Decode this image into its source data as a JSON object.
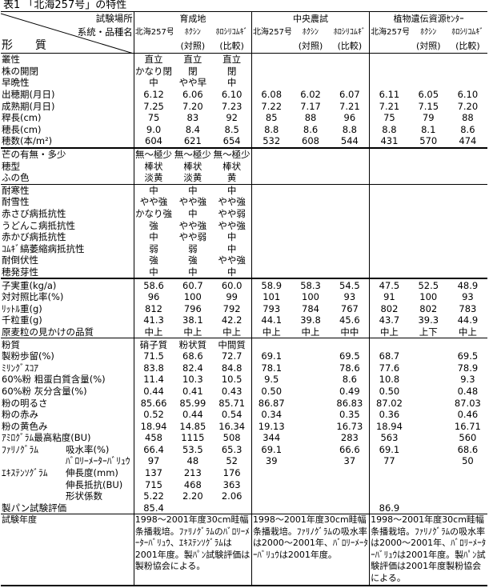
{
  "title": "表1 「北海257号」の特性",
  "header": {
    "site_label": "試験場所",
    "variety_label": "系統・品種名",
    "trait_label": "形　　質",
    "locations": [
      "育成地",
      "中央農試",
      "植物遺伝資源ｾﾝﾀｰ"
    ],
    "varieties": [
      "北海257号",
      "ﾎｸｼﾝ",
      "ﾎﾛｼﾘｺﾑｷﾞ"
    ],
    "roles": [
      "",
      "(対照)",
      "(比較)"
    ]
  },
  "sections": [
    {
      "border": "thin",
      "rows": [
        {
          "label": "叢性",
          "values": [
            "直立",
            "直立",
            "直立",
            "",
            "",
            "",
            "",
            "",
            ""
          ]
        },
        {
          "label": "株の開閉",
          "values": [
            "かなり閉",
            "閉",
            "閉",
            "",
            "",
            "",
            "",
            "",
            ""
          ]
        },
        {
          "label": "早晩性",
          "values": [
            "中",
            "やや早",
            "中",
            "",
            "",
            "",
            "",
            "",
            ""
          ]
        },
        {
          "label": "出穂期(月日)",
          "values": [
            "6.12",
            "6.06",
            "6.10",
            "6.08",
            "6.02",
            "6.07",
            "6.11",
            "6.05",
            "6.10"
          ]
        },
        {
          "label": "成熟期(月日)",
          "values": [
            "7.25",
            "7.20",
            "7.23",
            "7.22",
            "7.17",
            "7.21",
            "7.21",
            "7.15",
            "7.20"
          ]
        },
        {
          "label": "稈長(cm)",
          "values": [
            "75",
            "83",
            "92",
            "85",
            "88",
            "96",
            "75",
            "79",
            "88"
          ]
        },
        {
          "label": "穂長(cm)",
          "values": [
            "9.0",
            "8.4",
            "8.5",
            "8.8",
            "8.6",
            "8.8",
            "8.8",
            "8.1",
            "8.6"
          ]
        },
        {
          "label": "穂数(本/m²)",
          "values": [
            "604",
            "621",
            "654",
            "532",
            "608",
            "544",
            "431",
            "570",
            "474"
          ]
        }
      ]
    },
    {
      "border": "thick",
      "rows": [
        {
          "label": "芒の有無・多少",
          "values": [
            "無～極少",
            "無～極少",
            "無～極少",
            "",
            "",
            "",
            "",
            "",
            ""
          ]
        },
        {
          "label": "穂型",
          "values": [
            "棒状",
            "棒状",
            "棒状",
            "",
            "",
            "",
            "",
            "",
            ""
          ]
        },
        {
          "label": "ふの色",
          "values": [
            "淡黄",
            "淡黄",
            "黄",
            "",
            "",
            "",
            "",
            "",
            ""
          ]
        }
      ]
    },
    {
      "border": "thin",
      "rows": [
        {
          "label": "耐寒性",
          "values": [
            "中",
            "中",
            "中",
            "",
            "",
            "",
            "",
            "",
            ""
          ]
        },
        {
          "label": "耐雪性",
          "values": [
            "やや強",
            "やや強",
            "やや強",
            "",
            "",
            "",
            "",
            "",
            ""
          ]
        },
        {
          "label": "赤さび病抵抗性",
          "values": [
            "かなり強",
            "中",
            "やや弱",
            "",
            "",
            "",
            "",
            "",
            ""
          ]
        },
        {
          "label": "うどんこ病抵抗性",
          "values": [
            "強",
            "やや強",
            "やや強",
            "",
            "",
            "",
            "",
            "",
            ""
          ]
        },
        {
          "label": "赤かび病抵抗性",
          "values": [
            "中",
            "やや弱",
            "中",
            "",
            "",
            "",
            "",
            "",
            ""
          ]
        },
        {
          "label": "ｺﾑｷﾞ縞萎縮病抵抗性",
          "values": [
            "弱",
            "弱",
            "中",
            "",
            "",
            "",
            "",
            "",
            ""
          ]
        },
        {
          "label": "耐倒伏性",
          "values": [
            "強",
            "強",
            "やや強",
            "",
            "",
            "",
            "",
            "",
            ""
          ]
        },
        {
          "label": "穂発芽性",
          "values": [
            "中",
            "中",
            "中",
            "",
            "",
            "",
            "",
            "",
            ""
          ]
        }
      ]
    },
    {
      "border": "thick",
      "rows": [
        {
          "label": "子実重(kg/a)",
          "values": [
            "58.6",
            "60.7",
            "60.0",
            "58.9",
            "58.3",
            "54.5",
            "47.5",
            "52.5",
            "48.9"
          ]
        },
        {
          "label": "対対照比率(%)",
          "values": [
            "96",
            "100",
            "99",
            "101",
            "100",
            "93",
            "91",
            "100",
            "93"
          ]
        },
        {
          "label": "ﾘｯﾄﾙ重(g)",
          "values": [
            "812",
            "796",
            "792",
            "793",
            "784",
            "767",
            "802",
            "802",
            "783"
          ]
        },
        {
          "label": "千粒重(g)",
          "values": [
            "41.3",
            "38.1",
            "42.2",
            "44.1",
            "39.8",
            "45.6",
            "43.7",
            "39.3",
            "44.9"
          ]
        },
        {
          "label": "原麦粒の見かけの品質",
          "values": [
            "中上",
            "中上",
            "中上",
            "中上",
            "中上",
            "中中",
            "中上",
            "上下",
            "中上"
          ]
        }
      ]
    },
    {
      "border": "thin",
      "rows": [
        {
          "label": "粉質",
          "values": [
            "硝子質",
            "粉状質",
            "中間質",
            "",
            "",
            "",
            "",
            "",
            ""
          ]
        },
        {
          "label": "製粉歩留(%)",
          "values": [
            "71.5",
            "68.6",
            "72.7",
            "69.1",
            "",
            "69.5",
            "68.7",
            "",
            "69.5"
          ]
        },
        {
          "label": "ﾐﾘﾝｸﾞｽｺｱ",
          "values": [
            "83.8",
            "82.4",
            "84.8",
            "78.1",
            "",
            "78.6",
            "77.6",
            "",
            "78.9"
          ]
        },
        {
          "label": "60%粉 粗蛋白質含量(%)",
          "values": [
            "11.4",
            "10.3",
            "10.5",
            "9.5",
            "",
            "8.6",
            "10.8",
            "",
            "9.3"
          ]
        },
        {
          "label": "60%粉 灰分含量(%)",
          "values": [
            "0.44",
            "0.41",
            "0.43",
            "0.50",
            "",
            "0.49",
            "0.50",
            "",
            "0.48"
          ]
        },
        {
          "label": "粉の明るさ",
          "values": [
            "85.66",
            "85.99",
            "85.71",
            "86.87",
            "",
            "86.83",
            "87.02",
            "",
            "87.03"
          ]
        },
        {
          "label": "粉の赤み",
          "values": [
            "0.52",
            "0.44",
            "0.54",
            "0.34",
            "",
            "0.35",
            "0.36",
            "",
            "0.46"
          ]
        },
        {
          "label": "粉の黄色み",
          "values": [
            "18.94",
            "14.85",
            "16.34",
            "19.13",
            "",
            "16.73",
            "18.94",
            "",
            "16.71"
          ]
        },
        {
          "label": "ｱﾐﾛｸﾞﾗﾑ最高粘度(BU)",
          "values": [
            "458",
            "1115",
            "508",
            "344",
            "",
            "283",
            "563",
            "",
            "560"
          ]
        },
        {
          "group": "ﾌｧﾘﾉｸﾞﾗﾑ",
          "label": "吸水率(%)",
          "values": [
            "66.4",
            "53.5",
            "65.3",
            "69.1",
            "",
            "66.6",
            "69.1",
            "",
            "68.6"
          ]
        },
        {
          "group": "",
          "label": "ﾊﾞﾛﾘｰﾒｰﾀｰﾊﾞﾘｭｳ",
          "values": [
            "97",
            "48",
            "52",
            "39",
            "",
            "37",
            "77",
            "",
            "50"
          ]
        },
        {
          "group": "ｴｷｽﾃﾝｿｸﾞﾗﾑ",
          "label": "伸長度(mm)",
          "values": [
            "137",
            "213",
            "176",
            "",
            "",
            "",
            "",
            "",
            ""
          ]
        },
        {
          "group": "",
          "label": "伸長抵抗(BU)",
          "values": [
            "715",
            "468",
            "363",
            "",
            "",
            "",
            "",
            "",
            ""
          ]
        },
        {
          "group": "",
          "label": "形状係数",
          "values": [
            "5.22",
            "2.20",
            "2.06",
            "",
            "",
            "",
            "",
            "",
            ""
          ]
        },
        {
          "label": "製パン試験評価",
          "values": [
            "85.4",
            "",
            "",
            "",
            "",
            "",
            "86.9",
            "",
            ""
          ]
        }
      ]
    }
  ],
  "notes": {
    "label": "試験年度",
    "texts": [
      "1998～2001年度30cm畦幅条播栽培。ﾌｧﾘﾉｸﾞﾗﾑのﾊﾞﾛﾘｰﾒｰﾀｰﾊﾞﾘｭｳ、ｴｷｽﾃﾝｿｸﾞﾗﾑは2001年度。製ﾊﾟﾝ試験評価は製粉協会による。",
      "1998～2001年度30cm畦幅条播栽培。ﾌｧﾘﾉｸﾞﾗﾑの吸水率は2000～2001年、ﾊﾞﾛﾘｰﾒｰﾀｰﾊﾞﾘｭｳは2001年度。",
      "1998～2001年度30cm畦幅条播栽培。ﾌｧﾘﾉｸﾞﾗﾑの吸水率は2000～2001年、ﾊﾞﾛﾘｰﾒｰﾀｰﾊﾞﾘｭｳは2001年度。製ﾊﾟﾝ試験評価は2001年度製粉協会による。"
    ]
  }
}
